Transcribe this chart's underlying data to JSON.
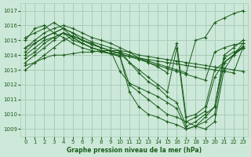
{
  "title": "Graphe pression niveau de la mer (hPa)",
  "bg_color": "#cce8d8",
  "grid_color": "#aaccbb",
  "line_color": "#1a5c1a",
  "xlim": [
    -0.5,
    23.5
  ],
  "ylim": [
    1008.5,
    1017.5
  ],
  "yticks": [
    1009,
    1010,
    1011,
    1012,
    1013,
    1014,
    1015,
    1016,
    1017
  ],
  "xticks": [
    0,
    1,
    2,
    3,
    4,
    5,
    6,
    7,
    8,
    9,
    10,
    11,
    12,
    13,
    14,
    15,
    16,
    17,
    18,
    19,
    20,
    21,
    22,
    23
  ],
  "series": [
    [
      1013.3,
      1013.5,
      1013.8,
      1014.0,
      1014.0,
      1014.1,
      1014.2,
      1014.2,
      1014.3,
      1014.3,
      1014.3,
      1014.2,
      1014.0,
      1013.9,
      1013.8,
      1013.7,
      1013.6,
      1013.5,
      1013.4,
      1013.3,
      1013.2,
      1013.1,
      1013.0,
      1012.9
    ],
    [
      1015.0,
      1015.8,
      1016.0,
      1015.5,
      1015.2,
      1014.8,
      1014.5,
      1014.3,
      1014.2,
      1014.1,
      1014.0,
      1013.9,
      1013.8,
      1013.7,
      1013.6,
      1013.5,
      1013.4,
      1013.3,
      1013.2,
      1013.1,
      1013.0,
      1012.9,
      1012.8,
      1014.5
    ],
    [
      1015.2,
      1015.5,
      1015.8,
      1016.2,
      1015.8,
      1015.5,
      1015.0,
      1014.8,
      1014.5,
      1014.3,
      1014.1,
      1013.9,
      1013.7,
      1013.5,
      1013.3,
      1013.1,
      1012.9,
      1012.7,
      1012.5,
      1012.3,
      1014.2,
      1014.5,
      1014.7,
      1014.8
    ],
    [
      1014.5,
      1014.8,
      1015.2,
      1015.5,
      1015.8,
      1015.2,
      1014.8,
      1014.5,
      1014.3,
      1014.1,
      1014.2,
      1014.0,
      1013.8,
      1013.6,
      1013.4,
      1013.2,
      1013.0,
      1012.8,
      1015.0,
      1015.2,
      1016.2,
      1016.5,
      1016.8,
      1017.0
    ],
    [
      1013.0,
      1013.5,
      1014.0,
      1014.5,
      1015.0,
      1015.3,
      1015.0,
      1014.8,
      1014.5,
      1014.3,
      1012.9,
      1012.1,
      1011.8,
      1011.5,
      1011.2,
      1010.8,
      1010.4,
      1009.0,
      1009.2,
      1009.5,
      1010.0,
      1013.5,
      1014.0,
      1014.8
    ],
    [
      1014.0,
      1014.5,
      1015.0,
      1015.2,
      1015.5,
      1015.0,
      1014.8,
      1014.5,
      1014.3,
      1014.1,
      1013.9,
      1011.5,
      1010.5,
      1010.0,
      1009.8,
      1009.5,
      1009.3,
      1009.0,
      1009.2,
      1009.8,
      1010.5,
      1013.8,
      1014.2,
      1014.5
    ],
    [
      1013.5,
      1014.0,
      1014.5,
      1015.0,
      1015.5,
      1015.2,
      1014.8,
      1014.5,
      1014.3,
      1014.1,
      1013.9,
      1012.0,
      1011.5,
      1011.0,
      1010.5,
      1010.0,
      1009.8,
      1009.5,
      1009.2,
      1009.0,
      1009.5,
      1013.0,
      1014.0,
      1014.6
    ],
    [
      1014.2,
      1014.8,
      1015.2,
      1015.5,
      1015.8,
      1015.5,
      1015.2,
      1014.9,
      1014.7,
      1014.5,
      1014.3,
      1013.5,
      1012.8,
      1012.2,
      1011.8,
      1011.2,
      1010.8,
      1009.2,
      1009.5,
      1010.0,
      1010.5,
      1014.0,
      1014.5,
      1015.0
    ],
    [
      1013.8,
      1014.2,
      1014.8,
      1015.2,
      1015.5,
      1015.3,
      1015.0,
      1014.7,
      1014.5,
      1014.3,
      1014.1,
      1013.5,
      1013.0,
      1012.5,
      1012.0,
      1011.5,
      1014.5,
      1009.5,
      1009.8,
      1010.2,
      1012.5,
      1013.5,
      1014.0,
      1014.5
    ],
    [
      1014.5,
      1015.0,
      1015.5,
      1015.8,
      1016.0,
      1015.8,
      1015.5,
      1015.2,
      1015.0,
      1014.8,
      1014.5,
      1014.2,
      1013.8,
      1013.5,
      1013.2,
      1012.8,
      1014.8,
      1009.8,
      1010.0,
      1010.5,
      1013.0,
      1013.5,
      1014.0,
      1014.5
    ]
  ]
}
